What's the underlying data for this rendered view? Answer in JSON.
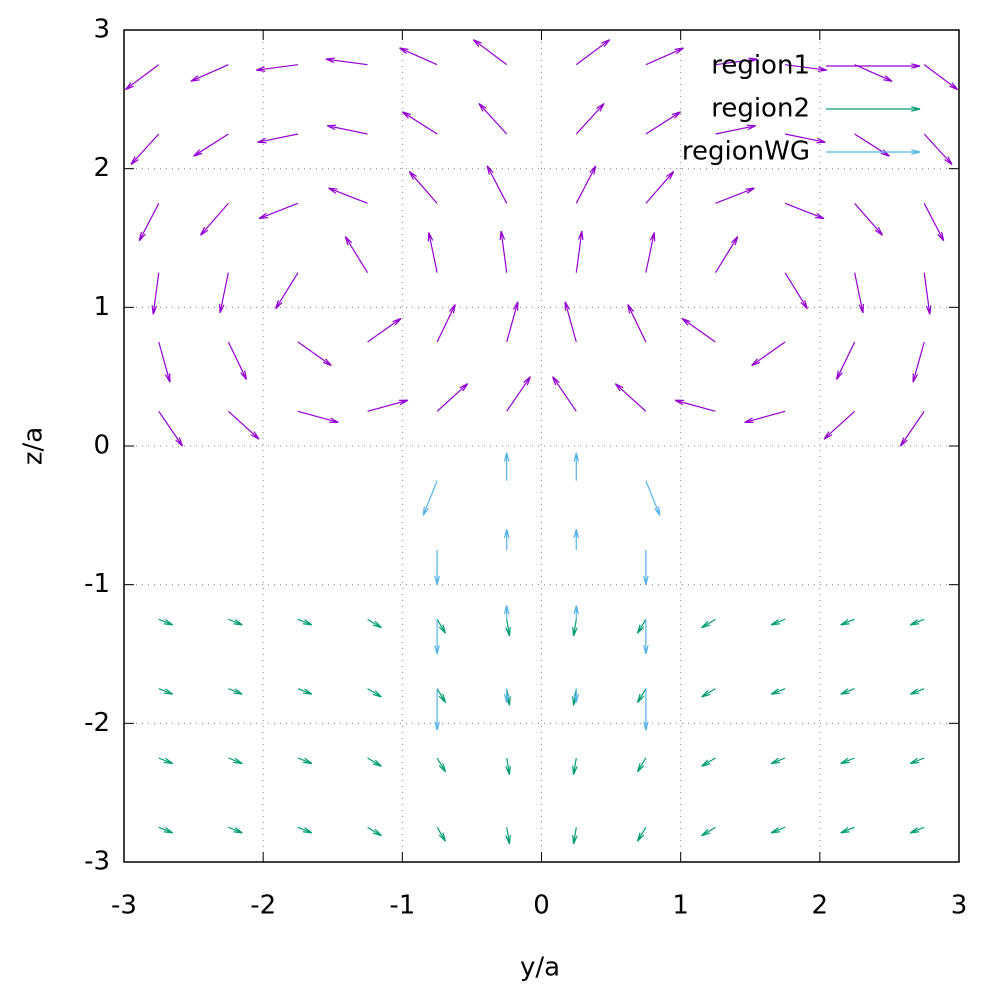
{
  "chart_data": {
    "type": "vector",
    "xlabel": "y/a",
    "ylabel": "z/a",
    "xlim": [
      -3,
      3
    ],
    "ylim": [
      -3,
      3
    ],
    "xticks": [
      -3,
      -2,
      -1,
      0,
      1,
      2,
      3
    ],
    "yticks": [
      -3,
      -2,
      -1,
      0,
      1,
      2,
      3
    ],
    "grid": true,
    "legend": "top-right",
    "series": [
      {
        "name": "region1",
        "color": "#9400d3",
        "x": [
          -2.75,
          -2.25,
          -1.75,
          -1.25,
          -0.75,
          -0.25,
          0.25,
          0.75,
          1.25,
          1.75,
          2.25,
          2.75,
          -2.75,
          -2.25,
          -1.75,
          -1.25,
          -0.75,
          -0.25,
          0.25,
          0.75,
          1.25,
          1.75,
          2.25,
          2.75,
          -2.75,
          -2.25,
          -1.75,
          -1.25,
          -0.75,
          -0.25,
          0.25,
          0.75,
          1.25,
          1.75,
          2.25,
          2.75,
          -2.75,
          -2.25,
          -1.75,
          -1.25,
          -0.75,
          -0.25,
          0.25,
          0.75,
          1.25,
          1.75,
          2.25,
          2.75,
          -2.75,
          -2.25,
          -1.75,
          -1.25,
          -0.75,
          -0.25,
          0.25,
          0.75,
          1.25,
          1.75,
          2.25,
          2.75,
          -2.75,
          -2.25,
          -1.75,
          -1.25,
          -0.75,
          -0.25,
          0.25,
          0.75,
          1.25,
          1.75,
          2.25,
          2.75
        ],
        "y": [
          0.25,
          0.25,
          0.25,
          0.25,
          0.25,
          0.25,
          0.25,
          0.25,
          0.25,
          0.25,
          0.25,
          0.25,
          0.75,
          0.75,
          0.75,
          0.75,
          0.75,
          0.75,
          0.75,
          0.75,
          0.75,
          0.75,
          0.75,
          0.75,
          1.25,
          1.25,
          1.25,
          1.25,
          1.25,
          1.25,
          1.25,
          1.25,
          1.25,
          1.25,
          1.25,
          1.25,
          1.75,
          1.75,
          1.75,
          1.75,
          1.75,
          1.75,
          1.75,
          1.75,
          1.75,
          1.75,
          1.75,
          1.75,
          2.25,
          2.25,
          2.25,
          2.25,
          2.25,
          2.25,
          2.25,
          2.25,
          2.25,
          2.25,
          2.25,
          2.25,
          2.75,
          2.75,
          2.75,
          2.75,
          2.75,
          2.75,
          2.75,
          2.75,
          2.75,
          2.75,
          2.75,
          2.75
        ],
        "dx": [
          0.17,
          0.22,
          0.29,
          0.29,
          0.22,
          0.17,
          -0.17,
          -0.22,
          -0.29,
          -0.29,
          -0.22,
          -0.17,
          0.08,
          0.13,
          0.24,
          0.24,
          0.13,
          0.08,
          -0.08,
          -0.13,
          -0.24,
          -0.24,
          -0.13,
          -0.08,
          -0.04,
          -0.06,
          -0.16,
          -0.16,
          -0.06,
          -0.04,
          0.04,
          0.06,
          0.16,
          0.16,
          0.06,
          0.04,
          -0.14,
          -0.2,
          -0.28,
          -0.28,
          -0.2,
          -0.14,
          0.14,
          0.2,
          0.28,
          0.28,
          0.2,
          0.14,
          -0.2,
          -0.25,
          -0.29,
          -0.29,
          -0.25,
          -0.2,
          0.2,
          0.25,
          0.29,
          0.29,
          0.25,
          0.2,
          -0.24,
          -0.27,
          -0.3,
          -0.3,
          -0.27,
          -0.24,
          0.24,
          0.27,
          0.3,
          0.3,
          0.27,
          0.24
        ],
        "dy": [
          -0.25,
          -0.2,
          -0.08,
          0.08,
          0.2,
          0.25,
          0.25,
          0.2,
          0.08,
          -0.08,
          -0.2,
          -0.25,
          -0.29,
          -0.27,
          -0.17,
          0.17,
          0.27,
          0.29,
          0.29,
          0.27,
          0.17,
          -0.17,
          -0.27,
          -0.29,
          -0.3,
          -0.29,
          -0.26,
          0.26,
          0.29,
          0.3,
          0.3,
          0.29,
          0.26,
          -0.26,
          -0.29,
          -0.3,
          -0.27,
          -0.23,
          -0.11,
          0.11,
          0.23,
          0.27,
          0.27,
          0.23,
          0.11,
          -0.11,
          -0.23,
          -0.27,
          -0.22,
          -0.16,
          -0.06,
          0.06,
          0.16,
          0.22,
          0.22,
          0.16,
          0.06,
          -0.06,
          -0.16,
          -0.22,
          -0.18,
          -0.12,
          -0.04,
          0.04,
          0.12,
          0.18,
          0.18,
          0.12,
          0.04,
          -0.04,
          -0.12,
          -0.18
        ]
      },
      {
        "name": "region2",
        "color": "#009e73",
        "x": [
          -2.75,
          -2.25,
          -1.75,
          -1.25,
          -0.75,
          -0.25,
          0.25,
          0.75,
          1.25,
          1.75,
          2.25,
          2.75,
          -2.75,
          -2.25,
          -1.75,
          -1.25,
          -0.75,
          -0.25,
          0.25,
          0.75,
          1.25,
          1.75,
          2.25,
          2.75,
          -2.75,
          -2.25,
          -1.75,
          -1.25,
          -0.75,
          -0.25,
          0.25,
          0.75,
          1.25,
          1.75,
          2.25,
          2.75,
          -2.75,
          -2.25,
          -1.75,
          -1.25,
          -0.75,
          -0.25,
          0.25,
          0.75,
          1.25,
          1.75,
          2.25,
          2.75
        ],
        "y": [
          -1.25,
          -1.25,
          -1.25,
          -1.25,
          -1.25,
          -1.25,
          -1.25,
          -1.25,
          -1.25,
          -1.25,
          -1.25,
          -1.25,
          -1.75,
          -1.75,
          -1.75,
          -1.75,
          -1.75,
          -1.75,
          -1.75,
          -1.75,
          -1.75,
          -1.75,
          -1.75,
          -1.75,
          -2.25,
          -2.25,
          -2.25,
          -2.25,
          -2.25,
          -2.25,
          -2.25,
          -2.25,
          -2.25,
          -2.25,
          -2.25,
          -2.25,
          -2.75,
          -2.75,
          -2.75,
          -2.75,
          -2.75,
          -2.75,
          -2.75,
          -2.75,
          -2.75,
          -2.75,
          -2.75,
          -2.75
        ],
        "dx": [
          0.1,
          0.1,
          0.1,
          0.1,
          0.06,
          0.02,
          -0.02,
          -0.06,
          -0.1,
          -0.1,
          -0.1,
          -0.1,
          0.1,
          0.1,
          0.1,
          0.1,
          0.06,
          0.02,
          -0.02,
          -0.06,
          -0.1,
          -0.1,
          -0.1,
          -0.1,
          0.1,
          0.1,
          0.1,
          0.1,
          0.06,
          0.02,
          -0.02,
          -0.06,
          -0.1,
          -0.1,
          -0.1,
          -0.1,
          0.1,
          0.1,
          0.1,
          0.1,
          0.06,
          0.02,
          -0.02,
          -0.06,
          -0.1,
          -0.1,
          -0.1,
          -0.1
        ],
        "dy": [
          -0.04,
          -0.04,
          -0.04,
          -0.06,
          -0.1,
          -0.12,
          -0.12,
          -0.1,
          -0.06,
          -0.04,
          -0.04,
          -0.04,
          -0.04,
          -0.04,
          -0.04,
          -0.06,
          -0.1,
          -0.12,
          -0.12,
          -0.1,
          -0.06,
          -0.04,
          -0.04,
          -0.04,
          -0.04,
          -0.04,
          -0.04,
          -0.06,
          -0.1,
          -0.12,
          -0.12,
          -0.1,
          -0.06,
          -0.04,
          -0.04,
          -0.04,
          -0.04,
          -0.04,
          -0.04,
          -0.06,
          -0.1,
          -0.12,
          -0.12,
          -0.1,
          -0.06,
          -0.04,
          -0.04,
          -0.04
        ]
      },
      {
        "name": "regionWG",
        "color": "#56b4e9",
        "x": [
          -0.75,
          -0.25,
          0.25,
          0.75,
          -0.75,
          -0.25,
          0.25,
          0.75,
          -0.75,
          -0.25,
          0.25,
          0.75,
          -0.75,
          -0.25,
          0.25,
          0.75
        ],
        "y": [
          -0.25,
          -0.25,
          -0.25,
          -0.25,
          -0.75,
          -0.75,
          -0.75,
          -0.75,
          -1.25,
          -1.25,
          -1.25,
          -1.25,
          -1.75,
          -1.75,
          -1.75,
          -1.75
        ],
        "dx": [
          -0.1,
          0,
          0,
          0.1,
          0,
          0,
          0,
          0,
          0,
          0,
          0,
          0,
          0,
          0,
          0,
          0
        ],
        "dy": [
          -0.25,
          0.2,
          0.2,
          -0.25,
          -0.25,
          0.15,
          0.15,
          -0.25,
          -0.25,
          0.1,
          0.1,
          -0.25,
          -0.3,
          -0.1,
          -0.1,
          -0.3
        ]
      }
    ]
  }
}
